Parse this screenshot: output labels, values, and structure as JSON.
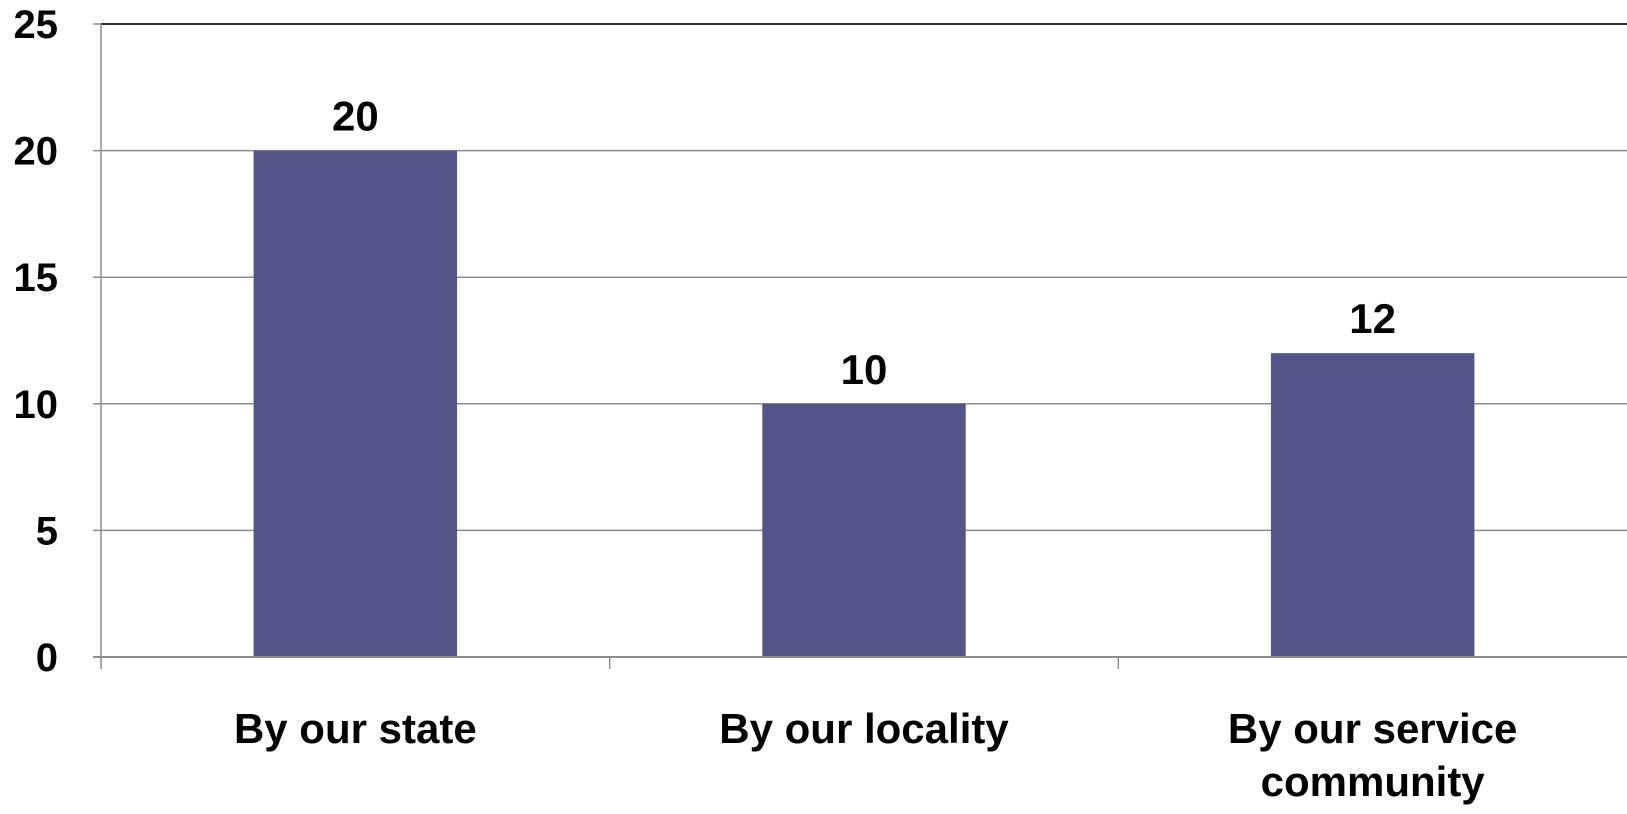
{
  "chart_data": {
    "type": "bar",
    "categories": [
      [
        "By our state"
      ],
      [
        "By our locality"
      ],
      [
        "By our service",
        "community"
      ]
    ],
    "values": [
      20,
      10,
      12
    ],
    "data_labels": [
      "20",
      "10",
      "12"
    ],
    "ylim": [
      0,
      25
    ],
    "yticks": [
      0,
      5,
      10,
      15,
      20,
      25
    ],
    "ytick_labels": [
      "0",
      "5",
      "10",
      "15",
      "20",
      "25"
    ],
    "grid": true,
    "title": "",
    "xlabel": "",
    "ylabel": "",
    "colors": {
      "bar": "#535487",
      "grid": "#8c8c8c",
      "axis": "#8c8c8c",
      "text": "#000000"
    }
  }
}
